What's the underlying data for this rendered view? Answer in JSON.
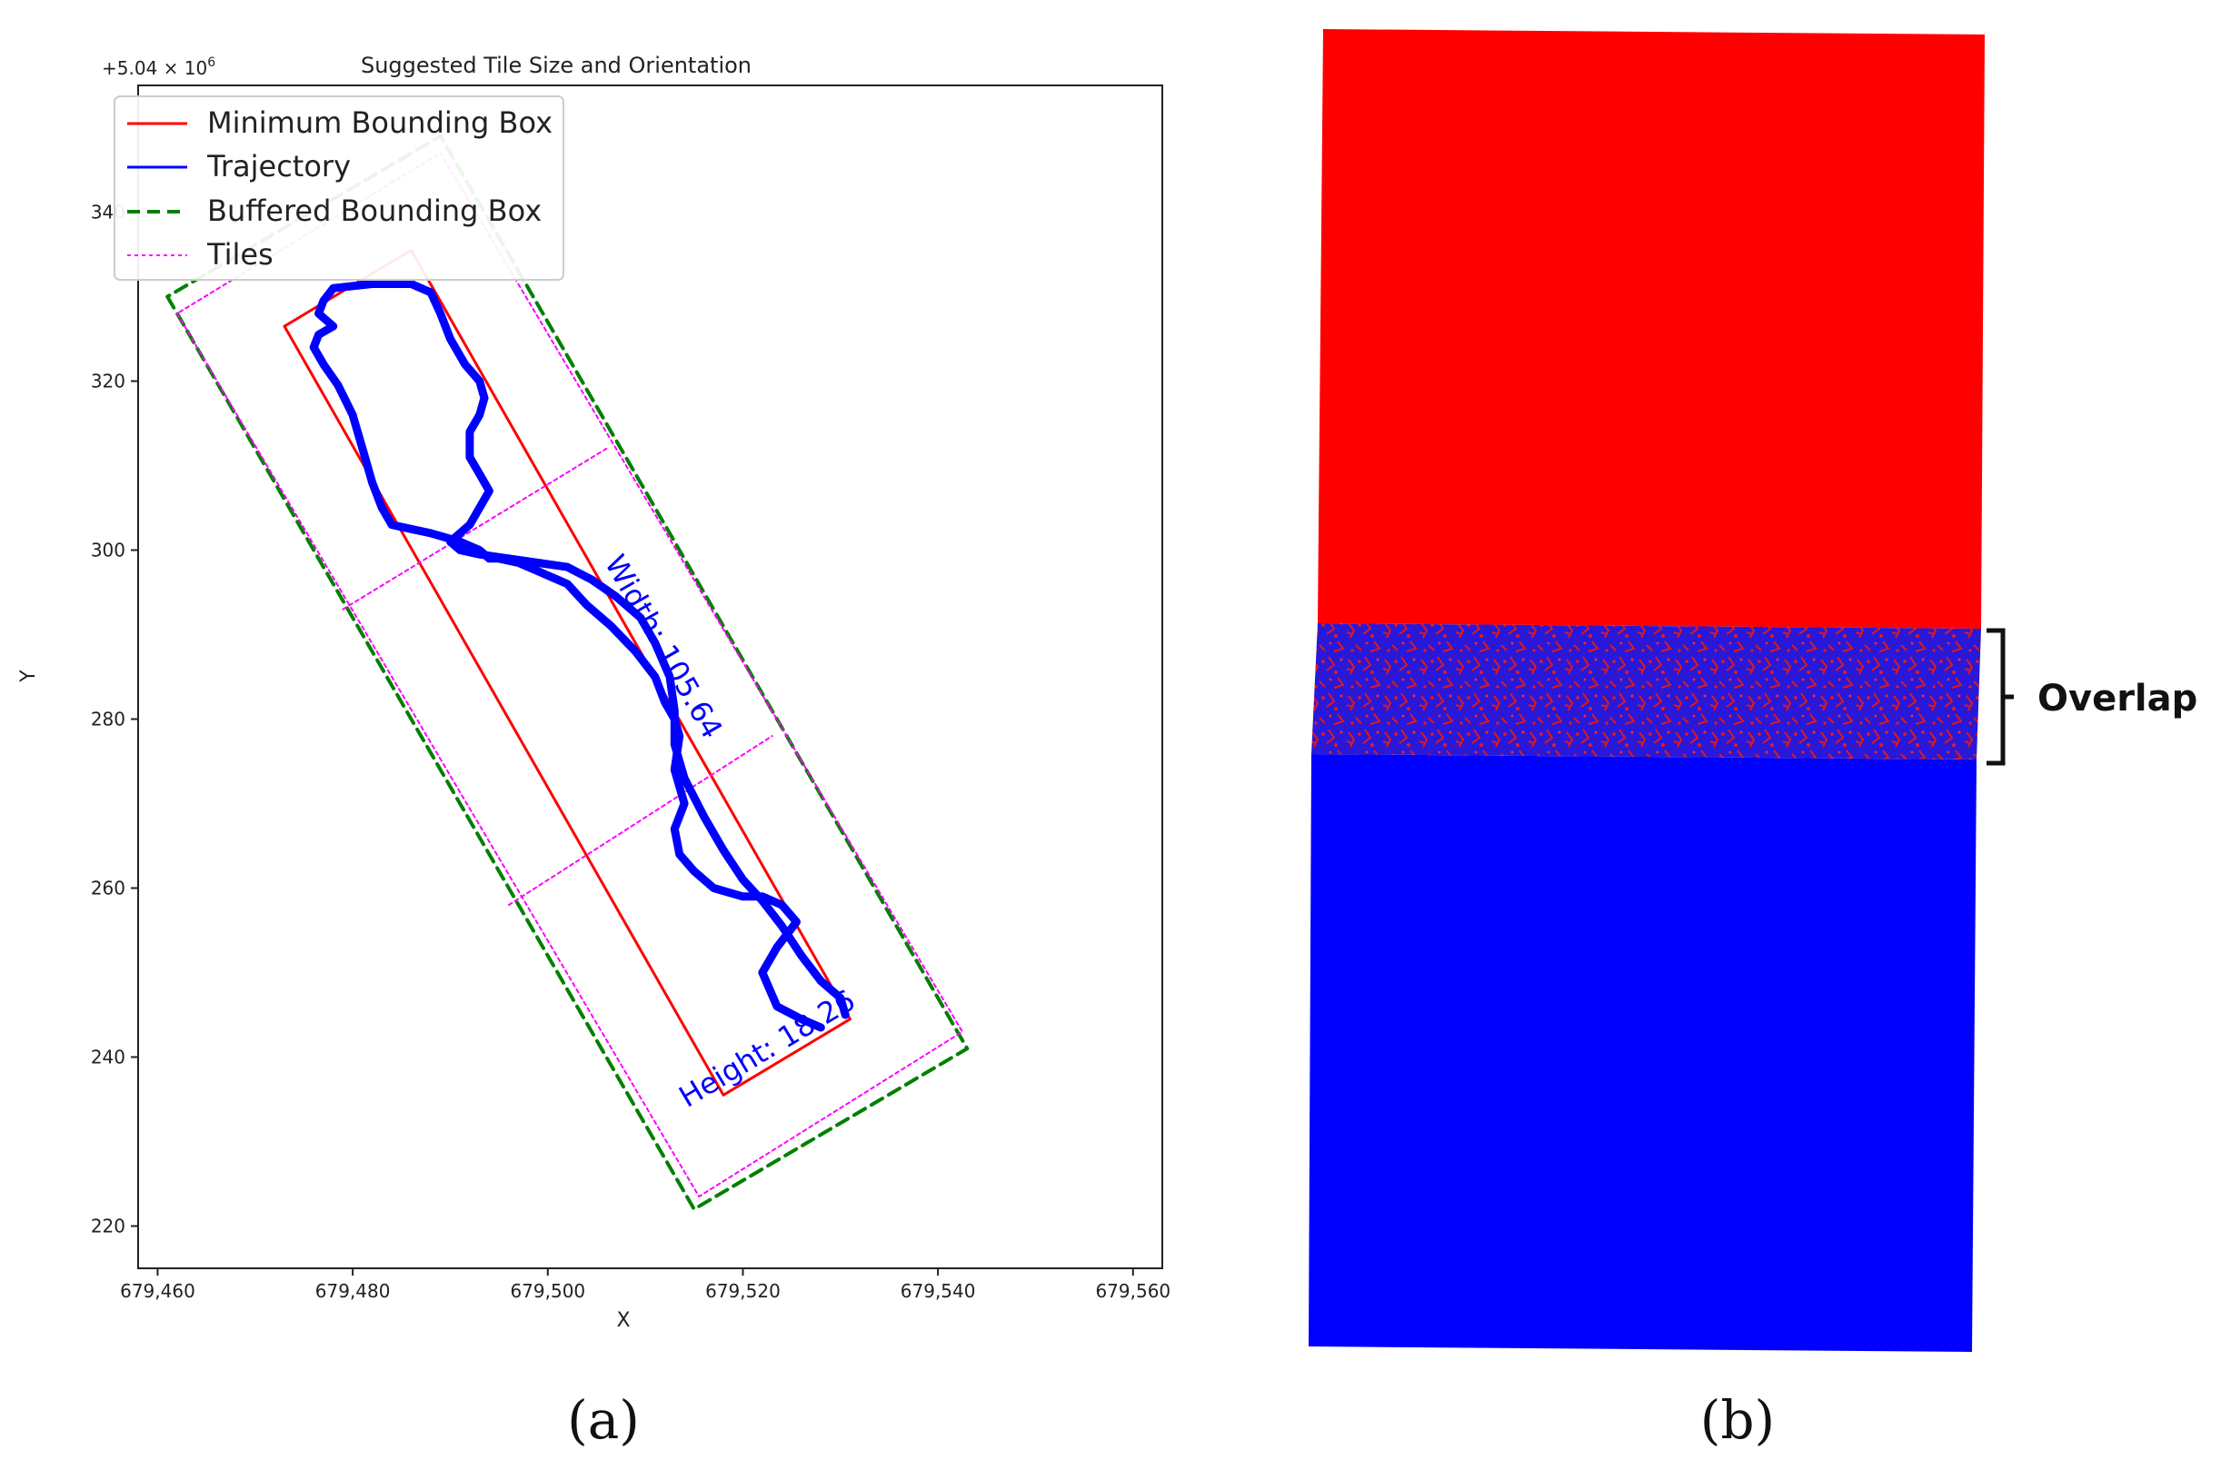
{
  "chart_data": [
    {
      "type": "line",
      "title": "Suggested Tile Size and Orientation",
      "xlabel": "X",
      "ylabel": "Y",
      "offset_label": "+5.04 × 10",
      "offset_exponent": "6",
      "xlim": [
        679458,
        679563
      ],
      "ylim": [
        215,
        355
      ],
      "x_ticks": [
        679460,
        679480,
        679500,
        679520,
        679540,
        679560
      ],
      "x_tick_labels": [
        "679,460",
        "679,480",
        "679,500",
        "679,520",
        "679,540",
        "679,560"
      ],
      "y_ticks": [
        220,
        240,
        260,
        280,
        300,
        320,
        340
      ],
      "y_tick_labels": [
        "220",
        "240",
        "260",
        "280",
        "300",
        "320",
        "340"
      ],
      "legend_position": "top-left",
      "legend": [
        {
          "label": "Minimum Bounding Box",
          "color": "#ff0000",
          "style": "solid"
        },
        {
          "label": "Trajectory",
          "color": "#0000ff",
          "style": "solid"
        },
        {
          "label": "Buffered Bounding Box",
          "color": "#008000",
          "style": "dashed"
        },
        {
          "label": "Tiles",
          "color": "#ff00ff",
          "style": "dotted"
        }
      ],
      "annotations": [
        {
          "text": "Width: 105.64",
          "x": 679511,
          "y": 288,
          "color": "#0000ff"
        },
        {
          "text": "Height: 18.26",
          "x": 679523,
          "y": 240,
          "color": "#0000ff"
        }
      ],
      "series": [
        {
          "name": "Minimum Bounding Box",
          "color": "#ff0000",
          "x": [
            679473,
            679518,
            679531,
            679486,
            679473
          ],
          "y": [
            326.5,
            235.5,
            244.5,
            335.5,
            326.5
          ]
        },
        {
          "name": "Buffered Bounding Box",
          "color": "#008000",
          "x": [
            679461,
            679515,
            679543,
            679489,
            679461
          ],
          "y": [
            330,
            222,
            241,
            349,
            330
          ]
        },
        {
          "name": "Tiles",
          "color": "#ff00ff",
          "polylines": [
            {
              "x": [
                679462,
                679515.5,
                679542.5,
                679489,
                679462
              ],
              "y": [
                328,
                223.5,
                243,
                347,
                328
              ]
            },
            {
              "x": [
                679479,
                679506
              ],
              "y": [
                293,
                312
              ]
            },
            {
              "x": [
                679496,
                679523
              ],
              "y": [
                258,
                278
              ]
            }
          ]
        },
        {
          "name": "Trajectory",
          "color": "#0000ff",
          "x": [
            679528,
            679526,
            679523.5,
            679522,
            679523.5,
            679525.5,
            679524,
            679522,
            679520,
            679517,
            679515,
            679513.5,
            679513,
            679514,
            679513,
            679513.5,
            679513,
            679512,
            679511,
            679509,
            679506.5,
            679504,
            679502,
            679499,
            679497,
            679495,
            679494,
            679493,
            679491,
            679488,
            679486,
            679484,
            679483,
            679482,
            679481,
            679480,
            679478.5,
            679477,
            679476,
            679476.5,
            679478,
            679476.5,
            679477,
            679478,
            679482,
            679486,
            679488,
            679489,
            679490,
            679491.5,
            679493,
            679493.5,
            679493,
            679492,
            679492,
            679493,
            679494,
            679493,
            679492,
            679491,
            679490,
            679491,
            679493,
            679496,
            679499,
            679502,
            679504.5,
            679507,
            679509.5,
            679511,
            679512.5,
            679513,
            679513,
            679514,
            679516,
            679518,
            679520,
            679522,
            679524,
            679526,
            679528,
            679530,
            679530.5
          ],
          "y": [
            243.5,
            244.5,
            246,
            250,
            253,
            256,
            258,
            259,
            259,
            260,
            262,
            264,
            267,
            270,
            274,
            278,
            280,
            282,
            285,
            288,
            291,
            293.5,
            296,
            297.5,
            298.5,
            299,
            299,
            300,
            301,
            302,
            302.5,
            303,
            305,
            308,
            312,
            316,
            319.5,
            322,
            324,
            325.5,
            326.5,
            328,
            329.5,
            331,
            331.5,
            331.5,
            330.5,
            328,
            325,
            322,
            320,
            318,
            316,
            314,
            311,
            309,
            307,
            305,
            303,
            302,
            301,
            300,
            299.5,
            299,
            298.5,
            298,
            296.5,
            294.5,
            292,
            289,
            285,
            281,
            277,
            273,
            268.5,
            264.5,
            261,
            258.5,
            255.5,
            252,
            249,
            247,
            245
          ]
        }
      ]
    },
    {
      "type": "heatmap",
      "annotation": "Overlap",
      "regions": [
        {
          "color": "#ff0000"
        },
        {
          "color": "#0000ff"
        }
      ]
    }
  ],
  "labels": {
    "panel_a": "(a)",
    "panel_b": "(b)"
  }
}
